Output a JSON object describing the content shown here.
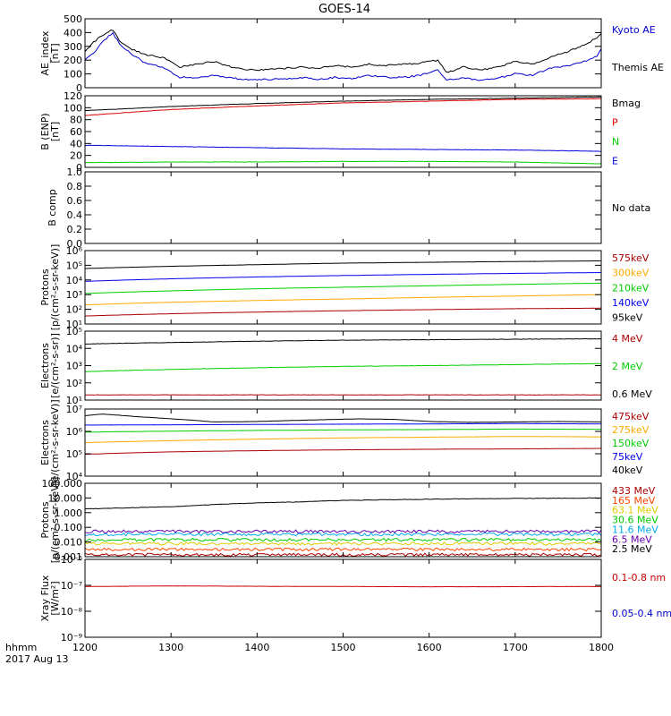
{
  "title": "GOES-14",
  "x_axis": {
    "ticks": [
      "1200",
      "1300",
      "1400",
      "1500",
      "1600",
      "1700",
      "1800"
    ],
    "range": [
      1200,
      1800
    ],
    "corner_label": "hhmm",
    "date_label": "2017 Aug 13"
  },
  "chart_data": [
    {
      "type": "line",
      "panel": "ae",
      "ylabel": "AE_index\n[nT]",
      "scale": "linear",
      "ylim": [
        0,
        500
      ],
      "ticks": [
        "0",
        "100",
        "200",
        "300",
        "400",
        "500"
      ],
      "grid": false,
      "series": [
        {
          "name": "Kyoto AE",
          "color": "#0000cc",
          "x": [
            1200,
            1210,
            1220,
            1232,
            1240,
            1255,
            1270,
            1290,
            1310,
            1330,
            1350,
            1370,
            1390,
            1410,
            1430,
            1450,
            1470,
            1490,
            1510,
            1530,
            1550,
            1570,
            1590,
            1610,
            1620,
            1640,
            1660,
            1680,
            1700,
            1720,
            1740,
            1760,
            1780,
            1795,
            1800
          ],
          "y": [
            200,
            250,
            330,
            400,
            320,
            240,
            180,
            150,
            75,
            75,
            90,
            70,
            55,
            60,
            60,
            75,
            60,
            75,
            65,
            90,
            75,
            75,
            90,
            130,
            55,
            70,
            55,
            70,
            100,
            90,
            140,
            160,
            190,
            230,
            280
          ]
        },
        {
          "name": "Themis AE",
          "color": "#000000",
          "x": [
            1200,
            1210,
            1220,
            1232,
            1240,
            1255,
            1270,
            1290,
            1310,
            1330,
            1350,
            1370,
            1390,
            1410,
            1430,
            1450,
            1470,
            1490,
            1510,
            1530,
            1550,
            1570,
            1590,
            1610,
            1620,
            1640,
            1660,
            1680,
            1700,
            1720,
            1740,
            1760,
            1780,
            1795,
            1800
          ],
          "y": [
            260,
            330,
            380,
            420,
            340,
            280,
            240,
            220,
            150,
            170,
            190,
            150,
            130,
            130,
            140,
            150,
            140,
            160,
            150,
            170,
            160,
            170,
            180,
            200,
            110,
            150,
            130,
            150,
            190,
            170,
            220,
            260,
            310,
            360,
            390
          ]
        }
      ]
    },
    {
      "type": "line",
      "panel": "b-enp",
      "ylabel": "B (ENP)\n[nT]",
      "scale": "linear",
      "ylim": [
        0,
        120
      ],
      "ticks": [
        "0",
        "20",
        "40",
        "60",
        "80",
        "100",
        "120"
      ],
      "grid": false,
      "series": [
        {
          "name": "Bmag",
          "color": "#000000",
          "x": [
            1200,
            1300,
            1400,
            1500,
            1600,
            1700,
            1800
          ],
          "y": [
            95,
            102,
            107,
            111,
            114,
            116,
            118
          ]
        },
        {
          "name": "P",
          "color": "#dd0000",
          "x": [
            1200,
            1300,
            1400,
            1500,
            1600,
            1700,
            1800
          ],
          "y": [
            87,
            97,
            103,
            108,
            111,
            114,
            115
          ]
        },
        {
          "name": "N",
          "color": "#00cc00",
          "x": [
            1200,
            1300,
            1400,
            1500,
            1600,
            1700,
            1800
          ],
          "y": [
            8,
            9,
            9,
            10,
            10,
            9,
            6
          ]
        },
        {
          "name": "E",
          "color": "#0000dd",
          "x": [
            1200,
            1300,
            1400,
            1500,
            1600,
            1700,
            1800
          ],
          "y": [
            37,
            35,
            33,
            31,
            30,
            29,
            27
          ]
        }
      ]
    },
    {
      "type": "line",
      "panel": "b-comp",
      "ylabel": "B comp",
      "scale": "linear",
      "ylim": [
        0,
        1
      ],
      "ticks": [
        "0.0",
        "0.2",
        "0.4",
        "0.6",
        "0.8",
        "1.0"
      ],
      "grid": false,
      "series": [
        {
          "name": "No data",
          "color": "#000000",
          "x": [],
          "y": []
        }
      ]
    },
    {
      "type": "line",
      "panel": "protons-low",
      "ylabel": "Protons\n[p/(cm²-s-sr-keV)]",
      "scale": "log",
      "ylim": [
        10,
        1000000
      ],
      "ticks": [
        "10¹",
        "10²",
        "10³",
        "10⁴",
        "10⁵",
        "10⁶"
      ],
      "grid": false,
      "series": [
        {
          "name": "575keV",
          "color": "#aa0000",
          "x": [
            1200,
            1300,
            1400,
            1500,
            1600,
            1700,
            1800
          ],
          "y": [
            35,
            50,
            65,
            80,
            95,
            110,
            120
          ]
        },
        {
          "name": "300keV",
          "color": "#ffaa00",
          "x": [
            1200,
            1300,
            1400,
            1500,
            1600,
            1700,
            1800
          ],
          "y": [
            200,
            300,
            400,
            500,
            650,
            800,
            1000
          ]
        },
        {
          "name": "210keV",
          "color": "#00cc00",
          "x": [
            1200,
            1300,
            1400,
            1500,
            1600,
            1700,
            1800
          ],
          "y": [
            1200,
            1800,
            2500,
            3200,
            4000,
            5000,
            6000
          ]
        },
        {
          "name": "140keV",
          "color": "#0000ee",
          "x": [
            1200,
            1300,
            1400,
            1500,
            1600,
            1700,
            1800
          ],
          "y": [
            8000,
            12000,
            16000,
            20000,
            24000,
            28000,
            32000
          ]
        },
        {
          "name": "95keV",
          "color": "#000000",
          "x": [
            1200,
            1300,
            1400,
            1500,
            1600,
            1700,
            1800
          ],
          "y": [
            60000,
            85000,
            110000,
            140000,
            160000,
            180000,
            200000
          ]
        }
      ]
    },
    {
      "type": "line",
      "panel": "electrons-mev",
      "ylabel": "Electrons\n[e/(cm²-s-sr)]",
      "scale": "log",
      "ylim": [
        10,
        100000
      ],
      "ticks": [
        "10¹",
        "10²",
        "10³",
        "10⁴",
        "10⁵"
      ],
      "grid": false,
      "series": [
        {
          "name": "4 MeV",
          "color": "#aa0000",
          "x": [
            1200,
            1300,
            1400,
            1500,
            1600,
            1700,
            1800
          ],
          "y": [
            20,
            20,
            20,
            20,
            20,
            20,
            20
          ]
        },
        {
          "name": "2 MeV",
          "color": "#00cc00",
          "x": [
            1200,
            1300,
            1400,
            1500,
            1600,
            1700,
            1800
          ],
          "y": [
            450,
            600,
            750,
            900,
            1000,
            1150,
            1300
          ]
        },
        {
          "name": "0.6 MeV",
          "color": "#000000",
          "x": [
            1200,
            1300,
            1400,
            1500,
            1600,
            1700,
            1800
          ],
          "y": [
            18000,
            22000,
            26000,
            30000,
            32000,
            34000,
            36000
          ]
        }
      ]
    },
    {
      "type": "line",
      "panel": "electrons-kev",
      "ylabel": "Electrons\n[e/(cm²-s-sr-keV)]",
      "scale": "log",
      "ylim": [
        1000,
        10000000
      ],
      "ticks": [
        "10⁴",
        "10⁵",
        "10⁶",
        "10⁷"
      ],
      "grid": false,
      "series": [
        {
          "name": "475keV",
          "color": "#aa0000",
          "x": [
            1200,
            1300,
            1400,
            1500,
            1600,
            1700,
            1800
          ],
          "y": [
            20000,
            28000,
            33000,
            37000,
            40000,
            42000,
            45000
          ]
        },
        {
          "name": "275keV",
          "color": "#ffaa00",
          "x": [
            1200,
            1300,
            1400,
            1500,
            1600,
            1700,
            1800
          ],
          "y": [
            100000,
            130000,
            160000,
            190000,
            210000,
            230000,
            220000
          ]
        },
        {
          "name": "150keV",
          "color": "#00cc00",
          "x": [
            1200,
            1300,
            1400,
            1500,
            1600,
            1700,
            1800
          ],
          "y": [
            420000,
            480000,
            530000,
            570000,
            600000,
            640000,
            620000
          ]
        },
        {
          "name": "75keV",
          "color": "#0000ee",
          "x": [
            1200,
            1300,
            1400,
            1500,
            1600,
            1700,
            1800
          ],
          "y": [
            1100000,
            1150000,
            1200000,
            1250000,
            1300000,
            1350000,
            1300000
          ]
        },
        {
          "name": "40keV",
          "color": "#000000",
          "x": [
            1200,
            1220,
            1260,
            1300,
            1350,
            1400,
            1460,
            1520,
            1560,
            1600,
            1650,
            1700,
            1750,
            1800
          ],
          "y": [
            4000000,
            5000000,
            3500000,
            2600000,
            1700000,
            1800000,
            2200000,
            2600000,
            2400000,
            1800000,
            1600000,
            1700000,
            1800000,
            1700000
          ]
        }
      ]
    },
    {
      "type": "line",
      "panel": "protons-high",
      "ylabel": "Protons\n[p/(cm²-s-sr-keV)]",
      "scale": "log",
      "ylim": [
        0.001,
        1000
      ],
      "ticks": [
        "0.001",
        "0.010",
        "0.100",
        "1.000",
        "10.000",
        "100.000"
      ],
      "grid": false,
      "series": [
        {
          "name": "433 MeV",
          "color": "#aa0000",
          "x": [
            1200,
            1300,
            1400,
            1500,
            1600,
            1700,
            1800
          ],
          "y": [
            0.0015,
            0.0015,
            0.0015,
            0.0015,
            0.0015,
            0.0015,
            0.0015
          ]
        },
        {
          "name": "165 MeV",
          "color": "#ff4400",
          "x": [
            1200,
            1300,
            1400,
            1500,
            1600,
            1700,
            1800
          ],
          "y": [
            0.004,
            0.004,
            0.004,
            0.004,
            0.004,
            0.004,
            0.004
          ]
        },
        {
          "name": "63.1 MeV",
          "color": "#ddcc00",
          "x": [
            1200,
            1300,
            1400,
            1500,
            1600,
            1700,
            1800
          ],
          "y": [
            0.012,
            0.012,
            0.012,
            0.012,
            0.012,
            0.012,
            0.012
          ]
        },
        {
          "name": "30.6 MeV",
          "color": "#00cc00",
          "x": [
            1200,
            1300,
            1400,
            1500,
            1600,
            1700,
            1800
          ],
          "y": [
            0.025,
            0.025,
            0.025,
            0.025,
            0.025,
            0.025,
            0.025
          ]
        },
        {
          "name": "11.6 MeV",
          "color": "#00aaee",
          "x": [
            1200,
            1300,
            1400,
            1500,
            1600,
            1700,
            1800
          ],
          "y": [
            0.07,
            0.07,
            0.07,
            0.07,
            0.07,
            0.07,
            0.07
          ]
        },
        {
          "name": "6.5 MeV",
          "color": "#6600aa",
          "x": [
            1200,
            1300,
            1400,
            1500,
            1600,
            1700,
            1800
          ],
          "y": [
            0.12,
            0.12,
            0.12,
            0.12,
            0.12,
            0.12,
            0.12
          ]
        },
        {
          "name": "2.5 MeV",
          "color": "#000000",
          "x": [
            1200,
            1250,
            1300,
            1350,
            1400,
            1450,
            1500,
            1550,
            1600,
            1650,
            1700,
            1750,
            1800
          ],
          "y": [
            8,
            10,
            12,
            18,
            25,
            30,
            40,
            45,
            50,
            55,
            58,
            60,
            62
          ]
        }
      ]
    },
    {
      "type": "line",
      "panel": "xray",
      "ylabel": "Xray Flux\n[W/m²]",
      "scale": "log",
      "ylim": [
        1e-09,
        1e-06
      ],
      "ticks": [
        "10⁻⁹",
        "10⁻⁸",
        "10⁻⁷",
        "10⁻⁶"
      ],
      "grid": false,
      "series": [
        {
          "name": "0.1-0.8 nm",
          "color": "#cc0000",
          "x": [
            1200,
            1300,
            1400,
            1500,
            1600,
            1700,
            1800
          ],
          "y": [
            9e-08,
            9.5e-08,
            9.2e-08,
            9e-08,
            8.8e-08,
            8.9e-08,
            9e-08
          ]
        },
        {
          "name": "0.05-0.4 nm",
          "color": "#0000cc",
          "x": [],
          "y": []
        }
      ]
    }
  ]
}
